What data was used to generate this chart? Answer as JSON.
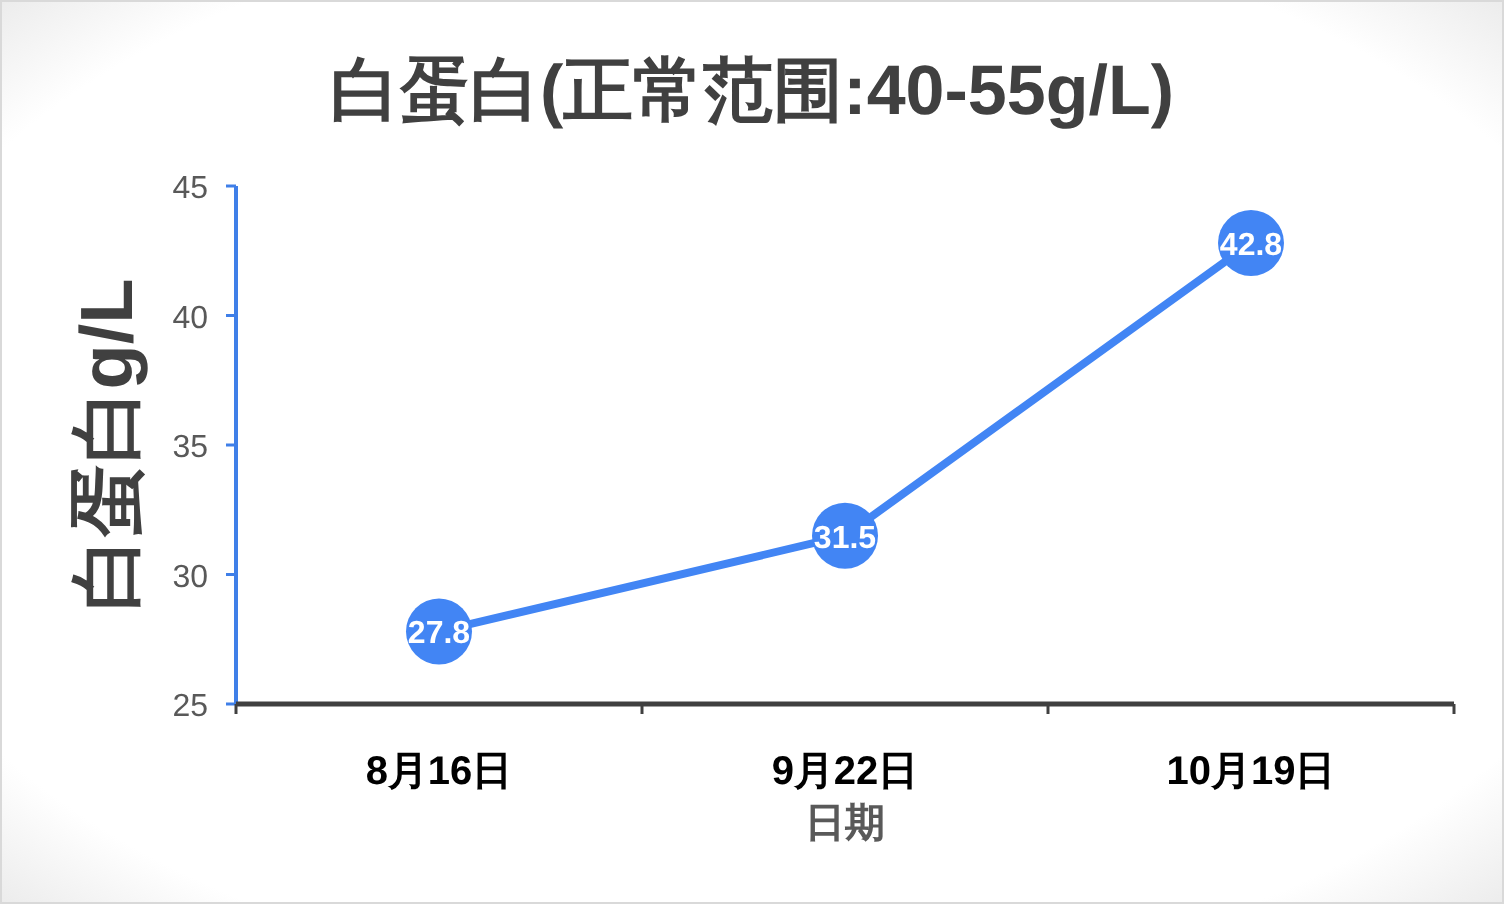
{
  "chart_data": {
    "type": "line",
    "title": "白蛋白(正常范围:40-55g/L)",
    "xlabel": "日期",
    "ylabel": "白蛋白g/L",
    "categories": [
      "8月16日",
      "9月22日",
      "10月19日"
    ],
    "series": [
      {
        "color": "#4285f4",
        "values": [
          27.8,
          31.5,
          42.8
        ]
      }
    ],
    "ylim": [
      25,
      45
    ],
    "yticks": [
      25,
      30,
      35,
      40,
      45
    ],
    "data_labels": true,
    "marker": "circle",
    "line_style": "solid",
    "grid": false
  }
}
